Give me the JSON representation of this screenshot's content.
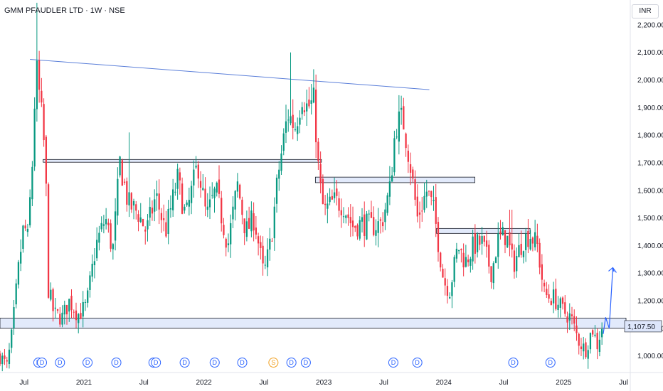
{
  "header": {
    "title": "GMM PFAUDLER LTD · 1W · NSE",
    "currency": "INR"
  },
  "chart_data": {
    "type": "candlestick",
    "ylim": [
      945,
      2290
    ],
    "xlim": [
      2020.3,
      2025.52
    ],
    "y_ticks": [
      1000,
      1100,
      1200,
      1300,
      1400,
      1500,
      1600,
      1700,
      1800,
      1900,
      2000,
      2100,
      2200
    ],
    "y_tick_labels": [
      "1,000.00",
      "1,100.00",
      "1,200.00",
      "1,300.00",
      "1,400.00",
      "1,500.00",
      "1,600.00",
      "1,700.00",
      "1,800.00",
      "1,900.00",
      "2,000.00",
      "2,100.00",
      "2,200.00"
    ],
    "x_ticks": [
      {
        "label": "Jul",
        "t": 2020.5
      },
      {
        "label": "2021",
        "t": 2021.0
      },
      {
        "label": "Jul",
        "t": 2021.5
      },
      {
        "label": "2022",
        "t": 2022.0
      },
      {
        "label": "Jul",
        "t": 2022.5
      },
      {
        "label": "2023",
        "t": 2023.0
      },
      {
        "label": "Jul",
        "t": 2023.5
      },
      {
        "label": "2024",
        "t": 2024.0
      },
      {
        "label": "Jul",
        "t": 2024.5
      },
      {
        "label": "2025",
        "t": 2025.0
      },
      {
        "label": "Jul",
        "t": 2025.5
      }
    ],
    "last_price": "1,107.50",
    "last_price_value": 1107.5,
    "keypoints": [
      [
        2020.3,
        1000
      ],
      [
        2020.36,
        960
      ],
      [
        2020.4,
        1080
      ],
      [
        2020.45,
        1300
      ],
      [
        2020.5,
        1480
      ],
      [
        2020.53,
        1420
      ],
      [
        2020.57,
        1700
      ],
      [
        2020.6,
        2050
      ],
      [
        2020.64,
        1900
      ],
      [
        2020.68,
        1700
      ],
      [
        2020.7,
        1250
      ],
      [
        2020.75,
        1150
      ],
      [
        2020.82,
        1140
      ],
      [
        2020.88,
        1200
      ],
      [
        2020.95,
        1150
      ],
      [
        2021.02,
        1180
      ],
      [
        2021.1,
        1400
      ],
      [
        2021.18,
        1500
      ],
      [
        2021.24,
        1380
      ],
      [
        2021.3,
        1700
      ],
      [
        2021.37,
        1550
      ],
      [
        2021.45,
        1520
      ],
      [
        2021.52,
        1450
      ],
      [
        2021.6,
        1580
      ],
      [
        2021.68,
        1450
      ],
      [
        2021.78,
        1640
      ],
      [
        2021.85,
        1500
      ],
      [
        2021.95,
        1700
      ],
      [
        2022.02,
        1500
      ],
      [
        2022.1,
        1600
      ],
      [
        2022.2,
        1400
      ],
      [
        2022.28,
        1620
      ],
      [
        2022.35,
        1450
      ],
      [
        2022.42,
        1500
      ],
      [
        2022.5,
        1290
      ],
      [
        2022.56,
        1420
      ],
      [
        2022.62,
        1660
      ],
      [
        2022.7,
        1880
      ],
      [
        2022.76,
        1830
      ],
      [
        2022.82,
        1950
      ],
      [
        2022.86,
        1900
      ],
      [
        2022.92,
        1920
      ],
      [
        2022.96,
        1640
      ],
      [
        2023.0,
        1520
      ],
      [
        2023.08,
        1560
      ],
      [
        2023.16,
        1550
      ],
      [
        2023.24,
        1470
      ],
      [
        2023.32,
        1480
      ],
      [
        2023.4,
        1470
      ],
      [
        2023.48,
        1480
      ],
      [
        2023.55,
        1600
      ],
      [
        2023.6,
        1840
      ],
      [
        2023.66,
        1860
      ],
      [
        2023.72,
        1700
      ],
      [
        2023.78,
        1500
      ],
      [
        2023.86,
        1600
      ],
      [
        2023.92,
        1520
      ],
      [
        2024.0,
        1270
      ],
      [
        2024.05,
        1240
      ],
      [
        2024.12,
        1400
      ],
      [
        2024.18,
        1340
      ],
      [
        2024.25,
        1400
      ],
      [
        2024.32,
        1410
      ],
      [
        2024.4,
        1300
      ],
      [
        2024.45,
        1420
      ],
      [
        2024.52,
        1440
      ],
      [
        2024.58,
        1330
      ],
      [
        2024.66,
        1420
      ],
      [
        2024.72,
        1440
      ],
      [
        2024.78,
        1400
      ],
      [
        2024.84,
        1220
      ],
      [
        2024.92,
        1210
      ],
      [
        2025.0,
        1160
      ],
      [
        2025.06,
        1140
      ],
      [
        2025.12,
        1060
      ],
      [
        2025.18,
        1020
      ],
      [
        2025.24,
        1100
      ],
      [
        2025.28,
        1040
      ],
      [
        2025.32,
        1107
      ]
    ],
    "spikes": [
      [
        2020.61,
        2280
      ],
      [
        2022.72,
        2100
      ],
      [
        2024.56,
        1530
      ],
      [
        2021.38,
        1810
      ]
    ],
    "trendline": {
      "from": [
        2020.55,
        2075
      ],
      "to": [
        2023.88,
        1965
      ]
    },
    "zones": [
      {
        "t0": 2020.3,
        "t1": 2025.52,
        "y0": 1100,
        "y1": 1137
      },
      {
        "t0": 2020.66,
        "t1": 2022.98,
        "y0": 1702,
        "y1": 1712
      },
      {
        "t0": 2022.93,
        "t1": 2024.26,
        "y0": 1628,
        "y1": 1648
      },
      {
        "t0": 2023.94,
        "t1": 2024.72,
        "y0": 1444,
        "y1": 1462
      }
    ],
    "projection": [
      [
        2025.33,
        1080
      ],
      [
        2025.35,
        1140
      ],
      [
        2025.38,
        1100
      ],
      [
        2025.41,
        1320
      ],
      [
        2025.42,
        1305
      ]
    ],
    "events": [
      {
        "label": "D",
        "t": 2020.62
      },
      {
        "label": "D",
        "t": 2020.65
      },
      {
        "label": "D",
        "t": 2020.8
      },
      {
        "label": "D",
        "t": 2021.03
      },
      {
        "label": "D",
        "t": 2021.27
      },
      {
        "label": "D",
        "t": 2021.58
      },
      {
        "label": "D",
        "t": 2021.6
      },
      {
        "label": "D",
        "t": 2021.84
      },
      {
        "label": "D",
        "t": 2022.09
      },
      {
        "label": "D",
        "t": 2022.32
      },
      {
        "label": "S",
        "t": 2022.58,
        "color": "#f0a020"
      },
      {
        "label": "D",
        "t": 2022.73
      },
      {
        "label": "D",
        "t": 2022.85
      },
      {
        "label": "D",
        "t": 2023.58
      },
      {
        "label": "D",
        "t": 2023.78
      },
      {
        "label": "D",
        "t": 2024.58
      },
      {
        "label": "D",
        "t": 2024.89
      }
    ],
    "colors": {
      "up": "#089981",
      "down": "#f23645",
      "zone_fill": "#dde6fa",
      "zone_stroke": "#131722",
      "trend": "#5b7fd9",
      "projection": "#2962ff",
      "event": "#2962ff",
      "price_label": "#dde6fa"
    }
  }
}
